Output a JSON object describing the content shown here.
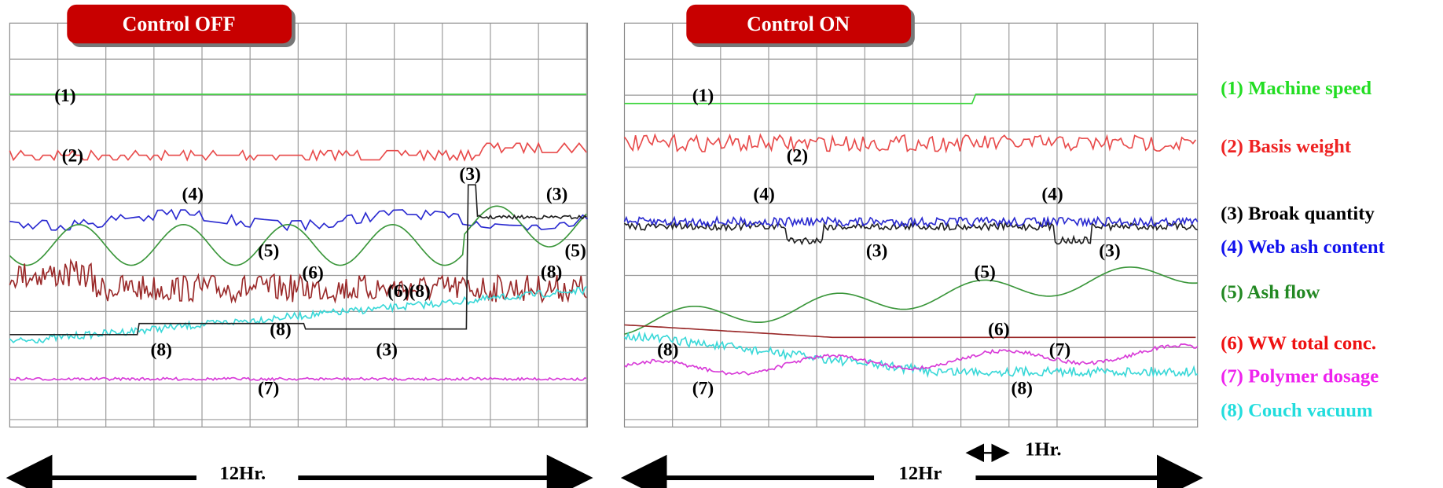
{
  "panels": [
    {
      "title": "Control   OFF",
      "annotations": [
        "(1)",
        "(2)",
        "(4)",
        "(3)",
        "(3)",
        "(5)",
        "(5)",
        "(6)",
        "(8)",
        "(6)(8)",
        "(8)",
        "(3)",
        "(8)",
        "(7)"
      ],
      "duration": "12Hr."
    },
    {
      "title": "Control   ON",
      "annotations": [
        "(1)",
        "(2)",
        "(4)",
        "(4)",
        "(3)",
        "(3)",
        "(5)",
        "(6)",
        "(7)",
        "(8)",
        "(7)",
        "(8)"
      ],
      "duration": "12Hr"
    }
  ],
  "scale_note": "1Hr.",
  "legend": [
    "(1) Machine speed",
    "(2) Basis weight",
    "(3) Broak quantity",
    "(4) Web ash content",
    "(5) Ash flow",
    "(6) WW total conc.",
    "(7) Polymer dosage",
    "(8) Couch vacuum"
  ]
}
